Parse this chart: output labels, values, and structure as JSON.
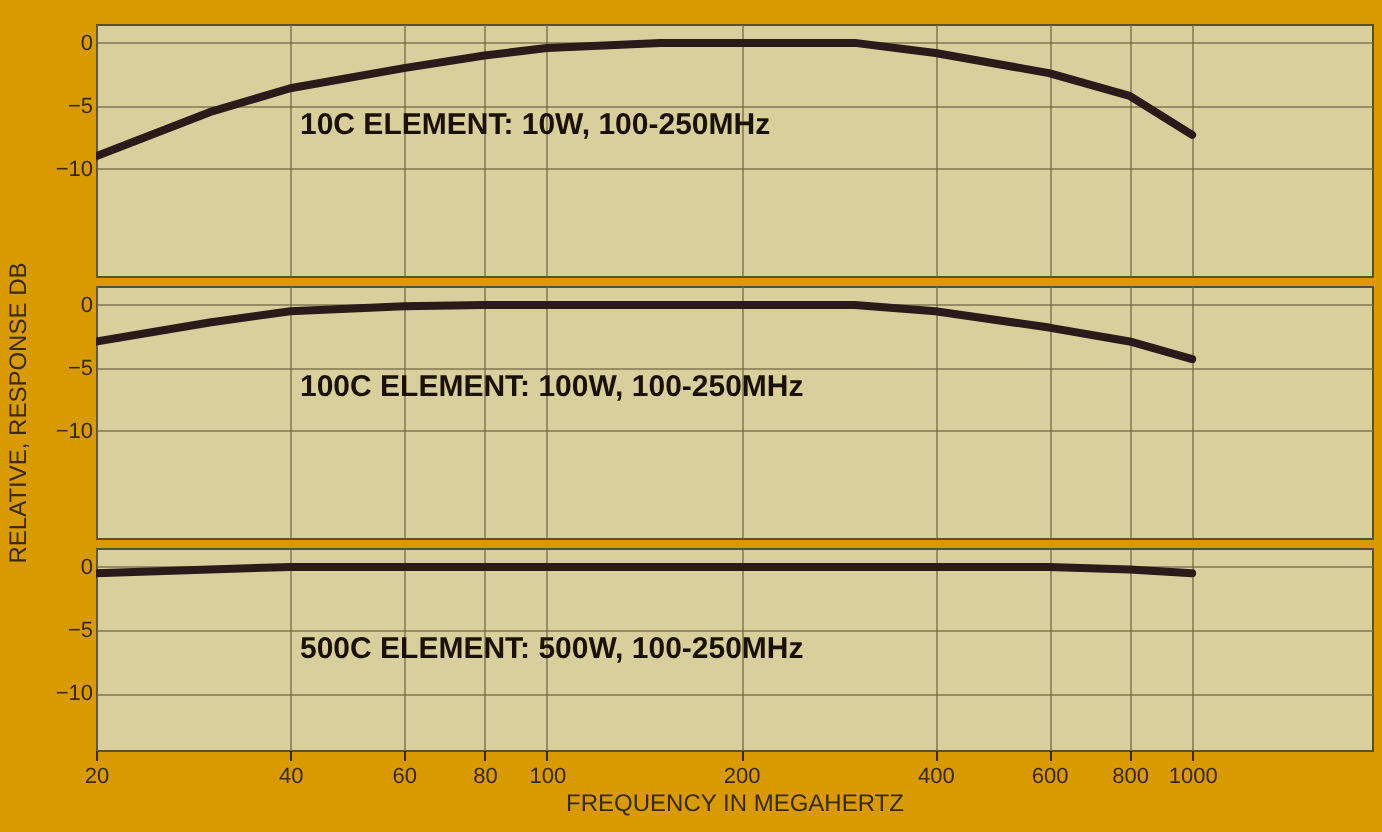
{
  "chart_data": [
    {
      "type": "line",
      "log": "x",
      "grid": true,
      "tick_labels": "y",
      "xlim": [
        20,
        1900
      ],
      "ylim": [
        -18.5,
        1.5
      ],
      "xticks": [
        20,
        40,
        60,
        80,
        100,
        200,
        400,
        600,
        800,
        1000
      ],
      "yticks": [
        0,
        -5,
        -10
      ],
      "series": [
        {
          "name": "10C ELEMENT: 10W, 100-250MHz",
          "color": "#2a1a1a",
          "x": [
            20,
            30,
            40,
            60,
            80,
            100,
            150,
            200,
            300,
            400,
            600,
            800,
            1000
          ],
          "values": [
            -9.0,
            -5.5,
            -3.6,
            -2.0,
            -1.0,
            -0.4,
            0,
            0,
            0,
            -0.8,
            -2.4,
            -4.2,
            -7.3
          ]
        }
      ]
    },
    {
      "type": "line",
      "log": "x",
      "grid": true,
      "tick_labels": "y",
      "ylabel": "RELATIVE, RESPONSE DB",
      "xlim": [
        20,
        1900
      ],
      "ylim": [
        -18.5,
        1.5
      ],
      "xticks": [
        20,
        40,
        60,
        80,
        100,
        200,
        400,
        600,
        800,
        1000
      ],
      "yticks": [
        0,
        -5,
        -10
      ],
      "series": [
        {
          "name": "100C ELEMENT: 100W, 100-250MHz",
          "color": "#2a1a1a",
          "x": [
            20,
            30,
            40,
            60,
            80,
            100,
            150,
            200,
            300,
            400,
            600,
            800,
            1000
          ],
          "values": [
            -2.9,
            -1.4,
            -0.5,
            -0.1,
            0,
            0,
            0,
            0,
            0,
            -0.5,
            -1.8,
            -2.9,
            -4.3
          ]
        }
      ]
    },
    {
      "type": "line",
      "log": "x",
      "grid": true,
      "xlabel": "FREQUENCY IN MEGAHERTZ",
      "xlim": [
        20,
        1900
      ],
      "ylim": [
        -14.5,
        1.5
      ],
      "xticks": [
        20,
        40,
        60,
        80,
        100,
        200,
        400,
        600,
        800,
        1000
      ],
      "yticks": [
        0,
        -5,
        -10
      ],
      "series": [
        {
          "name": "500C ELEMENT: 500W, 100-250MHz",
          "color": "#2a1a1a",
          "x": [
            20,
            30,
            40,
            60,
            80,
            100,
            150,
            200,
            300,
            400,
            600,
            800,
            1000
          ],
          "values": [
            -0.5,
            -0.2,
            0,
            0,
            0,
            0,
            0,
            0,
            0,
            0,
            0,
            -0.2,
            -0.5
          ]
        }
      ]
    }
  ]
}
